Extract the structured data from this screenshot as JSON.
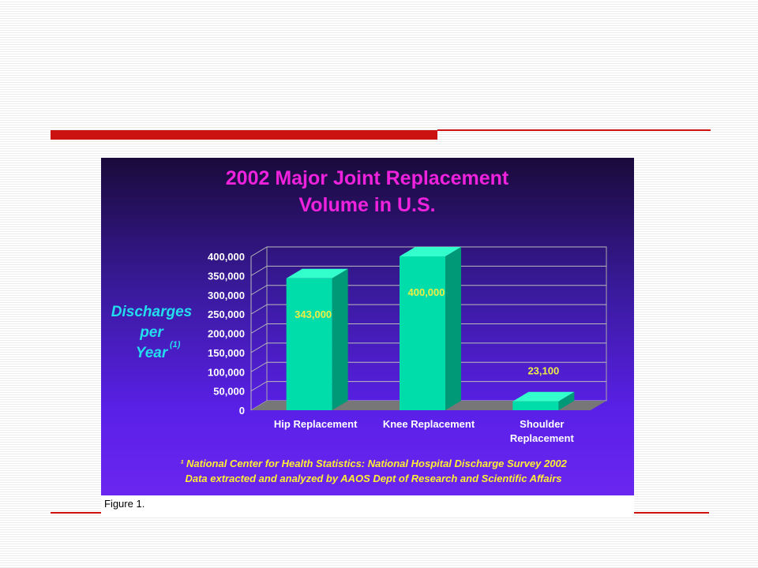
{
  "theme": {
    "accent_red": "#cc1111",
    "title_color": "#ee22dd",
    "ylabel_color": "#22ddee",
    "bar_face": "#00ddaa",
    "bar_side": "#009977",
    "bar_top": "#33ffcc",
    "value_label_color": "#eeee44",
    "axis_text_color": "#ffffff",
    "footnote_color": "#ffee33"
  },
  "chart_data": {
    "type": "bar",
    "title_lines": [
      "2002 Major Joint Replacement",
      "Volume in U.S."
    ],
    "ylabel_lines": [
      "Discharges",
      "per",
      "Year"
    ],
    "ylabel_superscript": "(1)",
    "xlabel": "",
    "categories": [
      "Hip Replacement",
      "Knee Replacement",
      "Shoulder"
    ],
    "category_second_lines": [
      "",
      "",
      "Replacement"
    ],
    "values": [
      343000,
      400000,
      23100
    ],
    "value_labels": [
      "343,000",
      "400,000",
      "23,100"
    ],
    "yticks": [
      "0",
      "50,000",
      "100,000",
      "150,000",
      "200,000",
      "250,000",
      "300,000",
      "350,000",
      "400,000"
    ],
    "ylim": [
      0,
      400000
    ],
    "grid": true,
    "legend": "none",
    "footnotes": [
      "¹ National Center for Health Statistics: National Hospital Discharge Survey 2002",
      "Data extracted and analyzed by AAOS Dept of Research and Scientific Affairs"
    ]
  },
  "figure": {
    "caption": "Figure 1."
  }
}
